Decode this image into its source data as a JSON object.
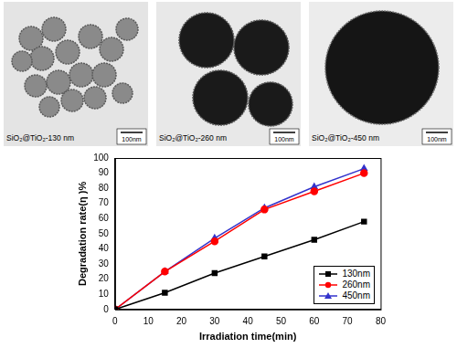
{
  "panels": [
    {
      "caption": "SiO₂@TiO₂-130 nm",
      "scale_bar": "100nm"
    },
    {
      "caption": "SiO₂@TiO₂-260 nm",
      "scale_bar": "100nm"
    },
    {
      "caption": "SiO₂@TiO₂-450 nm",
      "scale_bar": "100nm"
    }
  ],
  "chart_data": {
    "type": "line",
    "x_label": "Irradiation time(min)",
    "y_label": "Degradation rate(η )%",
    "x": [
      0,
      15,
      30,
      45,
      60,
      75
    ],
    "series": [
      {
        "name": "130nm",
        "color": "#000000",
        "marker": "square",
        "line_style": "solid",
        "values": [
          0,
          11,
          24,
          35,
          46,
          58
        ]
      },
      {
        "name": "260nm",
        "color": "#ff0000",
        "marker": "circle",
        "line_style": "solid",
        "values": [
          0,
          25,
          45,
          66,
          78,
          90
        ]
      },
      {
        "name": "450nm",
        "color": "#3333cc",
        "marker": "triangle",
        "line_style": "solid",
        "values": [
          0,
          25,
          47,
          67,
          81,
          93
        ]
      }
    ],
    "xlim": [
      0,
      80
    ],
    "xticks": [
      0,
      10,
      20,
      30,
      40,
      50,
      60,
      70,
      80
    ],
    "ylim": [
      0,
      100
    ],
    "yticks": [
      0,
      10,
      20,
      30,
      40,
      50,
      60,
      70,
      80,
      90,
      100
    ],
    "grid": false,
    "legend": "lower right"
  }
}
